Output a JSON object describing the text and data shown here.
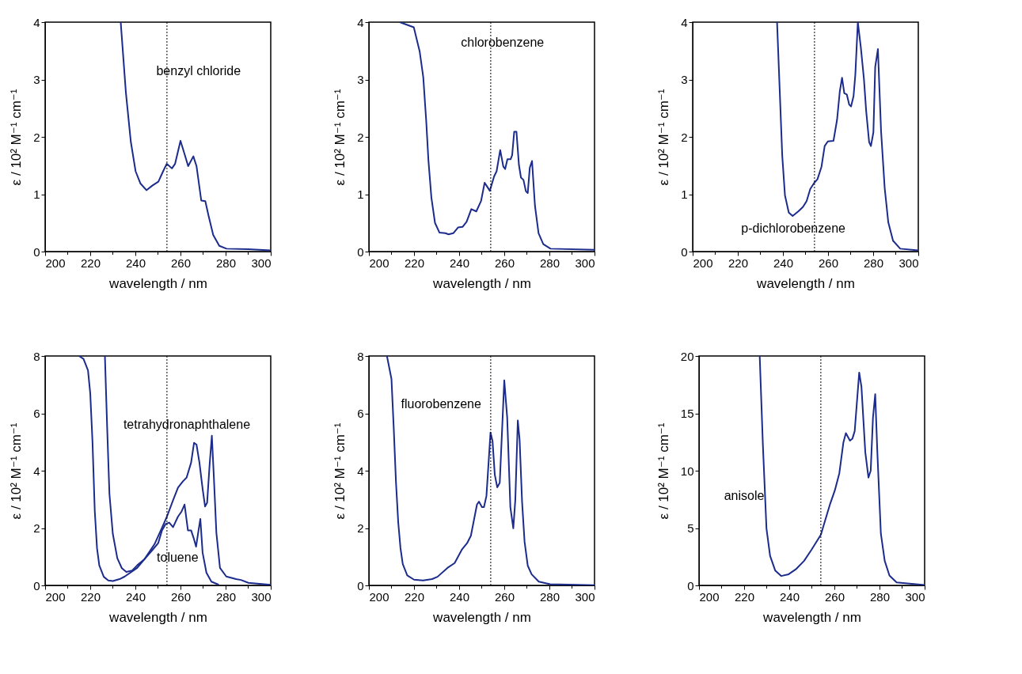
{
  "chart_data": [
    {
      "type": "line",
      "xlabel": "wavelength / nm",
      "ylabel": "ε / 10² M⁻¹ cm⁻¹",
      "xlim": [
        200,
        300
      ],
      "ylim": [
        0,
        4
      ],
      "xticks": [
        200,
        {
          "value": 210,
          "label": null
        },
        220,
        {
          "value": 230,
          "label": null
        },
        240,
        {
          "value": 250,
          "label": null
        },
        260,
        {
          "value": 270,
          "label": null
        },
        280,
        {
          "value": 290,
          "label": null
        },
        300
      ],
      "yticks": [
        0,
        1,
        2,
        3,
        4
      ],
      "series": [
        {
          "color": "#1c2c8c",
          "x": [
            233.5,
            235.8,
            238.0,
            240.1,
            242.2,
            244.9,
            247.5,
            250.2,
            252.3,
            253.9,
            256.2,
            257.6,
            260.0,
            261.8,
            263.4,
            265.7,
            267.1,
            269.2,
            271.0,
            272.4,
            274.5,
            277.2,
            280.4,
            289.9,
            300
          ],
          "values": [
            4,
            2.77,
            1.91,
            1.4,
            1.19,
            1.07,
            1.15,
            1.22,
            1.4,
            1.53,
            1.45,
            1.53,
            1.93,
            1.7,
            1.49,
            1.66,
            1.49,
            0.89,
            0.88,
            0.63,
            0.29,
            0.1,
            0.05,
            0.04,
            0.02
          ]
        }
      ],
      "ref_lines": [
        {
          "axis": "x",
          "value": 254,
          "color": "#000000",
          "line_style": "dotted"
        }
      ],
      "annotations": [
        "benzyl chloride"
      ]
    },
    {
      "type": "line",
      "xlabel": "wavelength / nm",
      "ylabel": "ε / 10² M⁻¹ cm⁻¹",
      "xlim": [
        200,
        300
      ],
      "ylim": [
        0,
        4
      ],
      "xticks": [
        200,
        {
          "value": 210,
          "label": null
        },
        220,
        {
          "value": 230,
          "label": null
        },
        240,
        {
          "value": 250,
          "label": null
        },
        260,
        {
          "value": 270,
          "label": null
        },
        280,
        {
          "value": 290,
          "label": null
        },
        300
      ],
      "yticks": [
        0,
        1,
        2,
        3,
        4
      ],
      "series": [
        {
          "color": "#1c2c8c",
          "x": [
            213.7,
            219.9,
            222.5,
            224.1,
            225.4,
            226.4,
            227.7,
            229.3,
            231.3,
            233.9,
            235.3,
            237.4,
            239.5,
            241.5,
            243.3,
            245.4,
            247.6,
            249.7,
            251.3,
            252.3,
            253.6,
            255.5,
            256.6,
            258.2,
            259.6,
            260.4,
            261.4,
            262.8,
            263.5,
            264.4,
            265.4,
            266.5,
            267.4,
            268.5,
            269.6,
            270.4,
            271.3,
            272.3,
            273.6,
            275.2,
            277.3,
            280.5,
            300
          ],
          "values": [
            4,
            3.91,
            3.49,
            3.04,
            2.28,
            1.58,
            0.94,
            0.5,
            0.33,
            0.32,
            0.3,
            0.32,
            0.42,
            0.43,
            0.52,
            0.74,
            0.7,
            0.88,
            1.2,
            1.14,
            1.06,
            1.31,
            1.4,
            1.77,
            1.48,
            1.44,
            1.61,
            1.61,
            1.68,
            2.09,
            2.09,
            1.51,
            1.29,
            1.25,
            1.05,
            1.02,
            1.46,
            1.58,
            0.8,
            0.32,
            0.13,
            0.05,
            0.03
          ]
        }
      ],
      "ref_lines": [
        {
          "axis": "x",
          "value": 254,
          "color": "#000000",
          "line_style": "dotted"
        }
      ],
      "annotations": [
        "chlorobenzene"
      ]
    },
    {
      "type": "line",
      "xlabel": "wavelength / nm",
      "ylabel": "ε / 10² M⁻¹ cm⁻¹",
      "xlim": [
        200,
        300
      ],
      "ylim": [
        0,
        4
      ],
      "xticks": [
        200,
        {
          "value": 210,
          "label": null
        },
        220,
        {
          "value": 230,
          "label": null
        },
        240,
        {
          "value": 250,
          "label": null
        },
        260,
        {
          "value": 270,
          "label": null
        },
        280,
        {
          "value": 290,
          "label": null
        },
        300
      ],
      "yticks": [
        0,
        1,
        2,
        3,
        4
      ],
      "series": [
        {
          "color": "#1c2c8c",
          "x": [
            237.4,
            238.6,
            239.7,
            240.9,
            242.6,
            244.3,
            246.8,
            248.9,
            250.5,
            252.1,
            253.9,
            255.3,
            257.1,
            258.5,
            259.9,
            262.4,
            264.0,
            265.2,
            266.2,
            267.2,
            268.3,
            269.4,
            270.2,
            271.3,
            272.1,
            273.2,
            274.5,
            275.9,
            276.9,
            278.2,
            279.0,
            280.1,
            280.9,
            282.1,
            283.5,
            285.1,
            286.7,
            288.8,
            292.0,
            300
          ],
          "values": [
            4,
            2.79,
            1.67,
            0.98,
            0.68,
            0.62,
            0.7,
            0.78,
            0.88,
            1.09,
            1.2,
            1.26,
            1.48,
            1.84,
            1.92,
            1.93,
            2.3,
            2.79,
            3.03,
            2.76,
            2.74,
            2.56,
            2.53,
            2.71,
            3.09,
            4.0,
            3.57,
            3.01,
            2.45,
            1.91,
            1.84,
            2.08,
            3.22,
            3.53,
            2.1,
            1.11,
            0.51,
            0.19,
            0.05,
            0.02
          ]
        }
      ],
      "ref_lines": [
        {
          "axis": "x",
          "value": 254,
          "color": "#000000",
          "line_style": "dotted"
        }
      ],
      "annotations": [
        "p-dichlorobenzene"
      ]
    },
    {
      "type": "line",
      "xlabel": "wavelength / nm",
      "ylabel": "ε / 10² M⁻¹ cm⁻¹",
      "xlim": [
        200,
        300
      ],
      "ylim": [
        0,
        8
      ],
      "xticks": [
        200,
        {
          "value": 210,
          "label": null
        },
        220,
        {
          "value": 230,
          "label": null
        },
        240,
        {
          "value": 250,
          "label": null
        },
        260,
        {
          "value": 270,
          "label": null
        },
        280,
        {
          "value": 290,
          "label": null
        },
        300
      ],
      "yticks": [
        0,
        2,
        4,
        6,
        8
      ],
      "series": [
        {
          "color": "#1c2c8c",
          "x": [
            215,
            217,
            219,
            220,
            221,
            222,
            223,
            224,
            226,
            228,
            230,
            233,
            235.3,
            240.8,
            244.1,
            247.4,
            250.1,
            251.8,
            253.4,
            255.0,
            256.7,
            258.9,
            260.5,
            261.8,
            263.3,
            264.7,
            265.8,
            266.9,
            268.0,
            268.8,
            269.8,
            271.5,
            273.7,
            277.0
          ],
          "values": [
            8,
            7.9,
            7.5,
            6.7,
            5,
            2.6,
            1.3,
            0.7,
            0.3,
            0.17,
            0.15,
            0.22,
            0.31,
            0.61,
            0.92,
            1.22,
            1.47,
            1.92,
            2.14,
            2.19,
            2.03,
            2.4,
            2.58,
            2.82,
            1.92,
            1.92,
            1.66,
            1.35,
            1.92,
            2.32,
            1.14,
            0.44,
            0.13,
            0.02
          ]
        },
        {
          "color": "#1c2c8c",
          "x": [
            226.5,
            227.5,
            228.5,
            230,
            232,
            234,
            236,
            238.6,
            240.8,
            244.1,
            248.5,
            251.8,
            254.0,
            256.7,
            258.9,
            261.1,
            262.7,
            264.7,
            266.0,
            267.1,
            268.4,
            269.8,
            270.9,
            271.8,
            272.9,
            273.9,
            274.8,
            275.9,
            277.5,
            280.3,
            284.6,
            286.8,
            290.1,
            300
          ],
          "values": [
            8,
            5.5,
            3.2,
            1.8,
            0.95,
            0.6,
            0.47,
            0.52,
            0.7,
            0.92,
            1.44,
            2.01,
            2.4,
            2.97,
            3.41,
            3.63,
            3.76,
            4.28,
            4.97,
            4.91,
            4.28,
            3.37,
            2.75,
            2.88,
            4.2,
            5.22,
            3.76,
            1.84,
            0.61,
            0.31,
            0.22,
            0.19,
            0.09,
            0.02
          ]
        }
      ],
      "ref_lines": [
        {
          "axis": "x",
          "value": 254,
          "color": "#000000",
          "line_style": "dotted"
        }
      ],
      "annotations": [
        "tetrahydronaphthalene",
        "toluene"
      ]
    },
    {
      "type": "line",
      "xlabel": "wavelength / nm",
      "ylabel": "ε / 10² M⁻¹ cm⁻¹",
      "xlim": [
        200,
        300
      ],
      "ylim": [
        0,
        8
      ],
      "xticks": [
        200,
        {
          "value": 210,
          "label": null
        },
        220,
        {
          "value": 230,
          "label": null
        },
        240,
        {
          "value": 250,
          "label": null
        },
        260,
        {
          "value": 270,
          "label": null
        },
        280,
        {
          "value": 290,
          "label": null
        },
        300
      ],
      "yticks": [
        0,
        2,
        4,
        6,
        8
      ],
      "series": [
        {
          "color": "#1c2c8c",
          "x": [
            208,
            209,
            210,
            211,
            212,
            213,
            214,
            215,
            217,
            220,
            224,
            228,
            230.4,
            234.8,
            238.0,
            241.3,
            243.5,
            245.2,
            247.9,
            248.8,
            250.1,
            251.0,
            252.1,
            253.9,
            254.8,
            255.8,
            256.9,
            258.0,
            260.0,
            261.3,
            262.7,
            264.0,
            264.9,
            266.0,
            266.8,
            267.9,
            269.0,
            270.4,
            272.1,
            275.3,
            280.3,
            300
          ],
          "values": [
            8,
            7.6,
            7.2,
            5.5,
            3.6,
            2.2,
            1.3,
            0.75,
            0.35,
            0.2,
            0.17,
            0.22,
            0.3,
            0.61,
            0.78,
            1.26,
            1.47,
            1.73,
            2.82,
            2.92,
            2.73,
            2.73,
            3.12,
            5.33,
            5.03,
            3.86,
            3.42,
            3.58,
            7.15,
            5.85,
            2.73,
            1.99,
            2.99,
            5.75,
            5.07,
            2.9,
            1.52,
            0.69,
            0.39,
            0.13,
            0.04,
            0.01
          ]
        }
      ],
      "ref_lines": [
        {
          "axis": "x",
          "value": 254,
          "color": "#000000",
          "line_style": "dotted"
        }
      ],
      "annotations": [
        "fluorobenzene"
      ]
    },
    {
      "type": "line",
      "xlabel": "wavelength / nm",
      "ylabel": "ε / 10² M⁻¹ cm⁻¹",
      "xlim": [
        200,
        300
      ],
      "ylim": [
        0,
        20
      ],
      "xticks": [
        200,
        {
          "value": 210,
          "label": null
        },
        220,
        {
          "value": 230,
          "label": null
        },
        240,
        {
          "value": 250,
          "label": null
        },
        260,
        {
          "value": 270,
          "label": null
        },
        280,
        {
          "value": 290,
          "label": null
        },
        300
      ],
      "yticks": [
        0,
        5,
        10,
        15,
        20
      ],
      "series": [
        {
          "color": "#1c2c8c",
          "x": [
            226.9,
            228.3,
            229.9,
            231.5,
            233.8,
            236.4,
            239.7,
            242.9,
            246.6,
            249.9,
            254,
            258.1,
            260.2,
            262.2,
            264.0,
            265.1,
            266.9,
            268.0,
            269.0,
            271.0,
            272.0,
            273.7,
            275.1,
            276.1,
            277.1,
            278.1,
            279.0,
            280.6,
            282.3,
            284.4,
            287.6,
            300
          ],
          "values": [
            20,
            12.3,
            4.95,
            2.58,
            1.29,
            0.82,
            0.97,
            1.4,
            2.15,
            3.12,
            4.41,
            7.1,
            8.28,
            9.78,
            12.47,
            13.27,
            12.62,
            12.8,
            13.44,
            18.56,
            17.31,
            11.61,
            9.4,
            10.0,
            14.62,
            16.67,
            11.83,
            4.52,
            2.15,
            0.86,
            0.26,
            0.04
          ]
        }
      ],
      "ref_lines": [
        {
          "axis": "x",
          "value": 254,
          "color": "#000000",
          "line_style": "dotted"
        }
      ],
      "annotations": [
        "anisole"
      ]
    }
  ]
}
